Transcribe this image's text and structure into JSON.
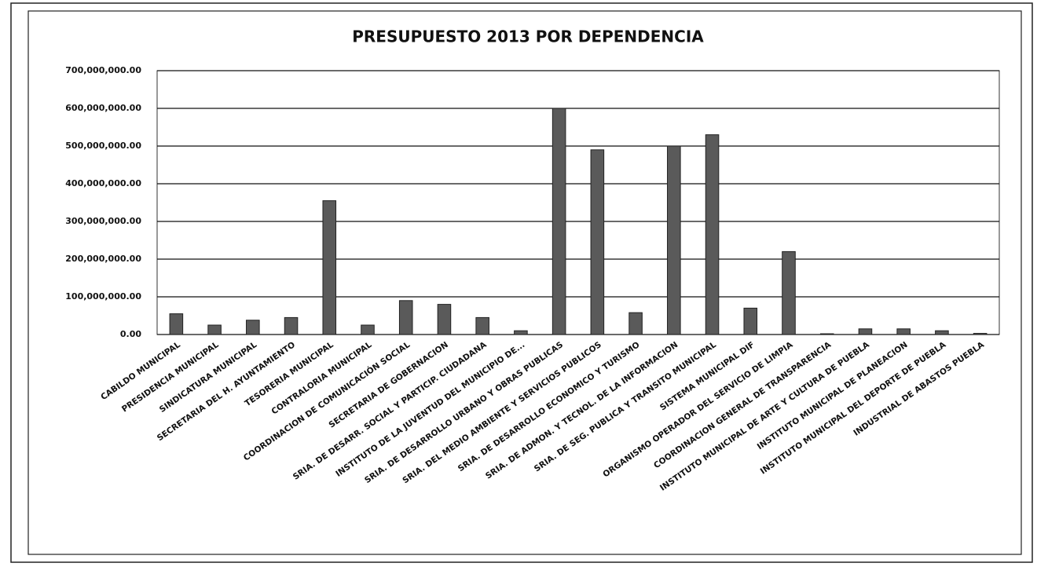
{
  "chart_data": {
    "type": "bar",
    "title": "PRESUPUESTO 2013 POR DEPENDENCIA",
    "categories": [
      "CABILDO MUNICIPAL",
      "PRESIDENCIA MUNICIPAL",
      "SINDICATURA MUNICIPAL",
      "SECRETARIA DEL H. AYUNTAMIENTO",
      "TESORERIA MUNICIPAL",
      "CONTRALORIA MUNICIPAL",
      "COORDINACION DE COMUNICACIÓN SOCIAL",
      "SECRETARIA DE GOBERNACION",
      "SRIA. DE DESARR. SOCIAL Y PARTICIP. CIUDADANA",
      "INSTITUTO DE LA JUVENTUD DEL MUNICIPIO DE...",
      "SRIA. DE DESARROLLO URBANO Y OBRAS PUBLICAS",
      "SRIA. DEL MEDIO AMBIENTE Y SERVICIOS PUBLICOS",
      "SRIA. DE DESARROLLO ECONOMICO Y TURISMO",
      "SRIA. DE ADMON. Y TECNOL. DE LA INFORMACION",
      "SRIA. DE SEG. PUBLICA Y TRANSITO MUNICIPAL",
      "SISTEMA MUNICIPAL DIF",
      "ORGANISMO OPERADOR DEL SERVICIO DE LIMPIA",
      "COORDINACION GENERAL DE TRANSPARENCIA",
      "INSTITUTO MUNICIPAL DE ARTE Y CULTURA DE PUEBLA",
      "INSTITUTO MUNICIPAL DE PLANEACION",
      "INSTITUTO MUNICIPAL DEL DEPORTE DE PUEBLA",
      "INDUSTRIAL DE ABASTOS PUEBLA"
    ],
    "values": [
      55000000,
      25000000,
      38000000,
      45000000,
      355000000,
      25000000,
      90000000,
      80000000,
      45000000,
      10000000,
      600000000,
      490000000,
      58000000,
      500000000,
      530000000,
      70000000,
      220000000,
      2000000,
      15000000,
      15000000,
      10000000,
      3000000
    ],
    "color": "#5a5a5a",
    "ylim": [
      0,
      700000000
    ],
    "yticks": [
      {
        "value": 0,
        "label": "0.00"
      },
      {
        "value": 100000000,
        "label": "100,000,000.00"
      },
      {
        "value": 200000000,
        "label": "200,000,000.00"
      },
      {
        "value": 300000000,
        "label": "300,000,000.00"
      },
      {
        "value": 400000000,
        "label": "400,000,000.00"
      },
      {
        "value": 500000000,
        "label": "500,000,000.00"
      },
      {
        "value": 600000000,
        "label": "600,000,000.00"
      },
      {
        "value": 700000000,
        "label": "700,000,000.00"
      }
    ],
    "grid": true
  }
}
